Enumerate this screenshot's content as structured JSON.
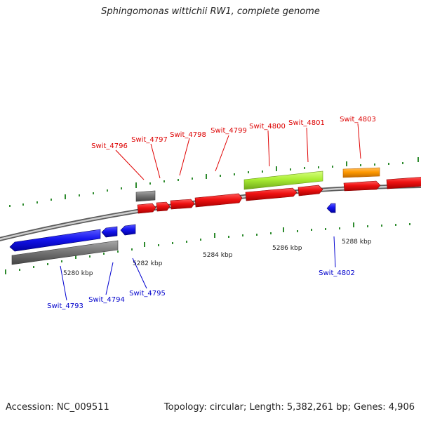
{
  "title": "Sphingomonas wittichii RW1, complete genome",
  "footer": {
    "accession": "Accession: NC_009511",
    "summary": "Topology: circular; Length: 5,382,261 bp; Genes: 4,906"
  },
  "scale_labels": [
    "5280 kbp",
    "5282 kbp",
    "5284 kbp",
    "5286 kbp",
    "5288 kbp"
  ],
  "gene_labels_top": [
    "Swit_4796",
    "Swit_4797",
    "Swit_4798",
    "Swit_4799",
    "Swit_4800",
    "Swit_4801",
    "Swit_4803"
  ],
  "gene_labels_bottom": [
    "Swit_4793",
    "Swit_4794",
    "Swit_4795",
    "Swit_4802"
  ],
  "colors": {
    "forward_cds": "#e60000",
    "reverse_cds": "#1010e0",
    "gene": "#6e6e6e",
    "rrna_like": "#aaee33",
    "orange_feature": "#ff9900",
    "tick": "#2e8b2e",
    "backbone": "#999999"
  }
}
